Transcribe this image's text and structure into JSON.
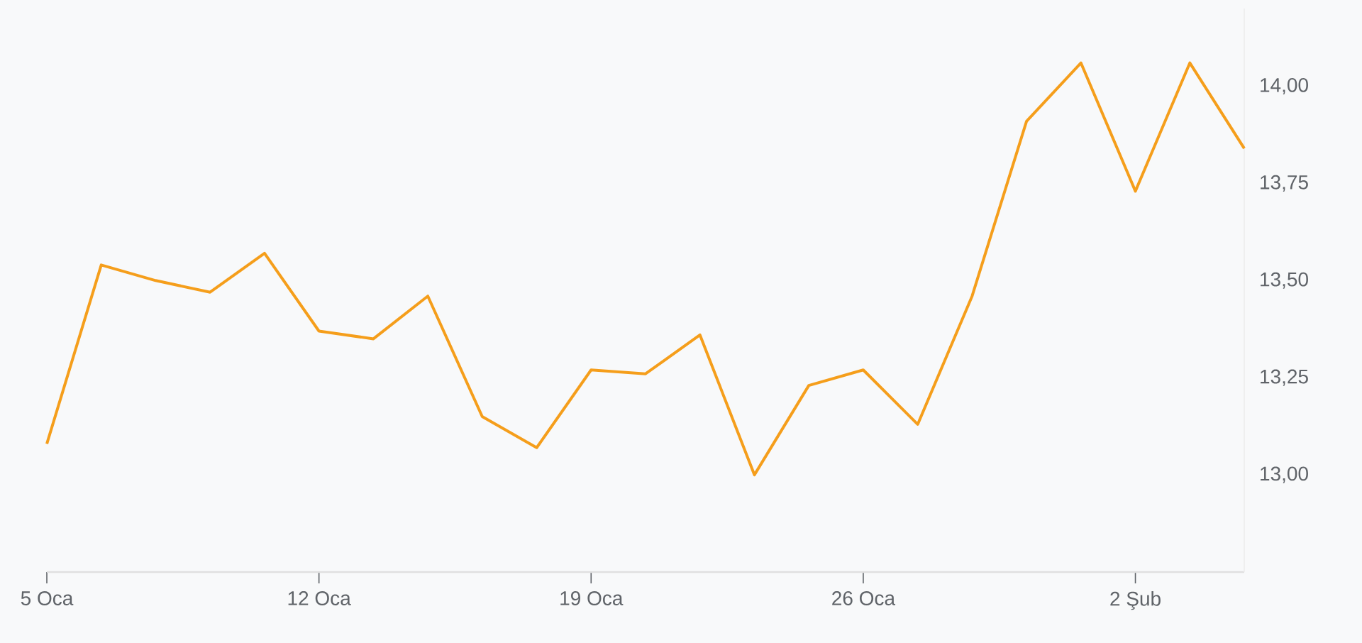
{
  "chart_data": {
    "type": "line",
    "categories": [
      "5 Oca",
      null,
      null,
      null,
      null,
      "12 Oca",
      null,
      null,
      null,
      null,
      "19 Oca",
      null,
      null,
      null,
      null,
      "26 Oca",
      null,
      null,
      null,
      null,
      "2 Şub",
      null,
      null
    ],
    "values": [
      13.08,
      13.54,
      13.5,
      13.47,
      13.57,
      13.37,
      13.35,
      13.46,
      13.15,
      13.07,
      13.27,
      13.26,
      13.36,
      13.0,
      13.23,
      13.27,
      13.13,
      13.46,
      13.91,
      14.06,
      13.73,
      14.06,
      13.84
    ],
    "color": "#f59e1b",
    "ylim": [
      12.75,
      14.2
    ],
    "yticks": [
      {
        "value": 13.0,
        "label": "13,00"
      },
      {
        "value": 13.25,
        "label": "13,25"
      },
      {
        "value": 13.5,
        "label": "13,50"
      },
      {
        "value": 13.75,
        "label": "13,75"
      },
      {
        "value": 14.0,
        "label": "14,00"
      }
    ]
  }
}
